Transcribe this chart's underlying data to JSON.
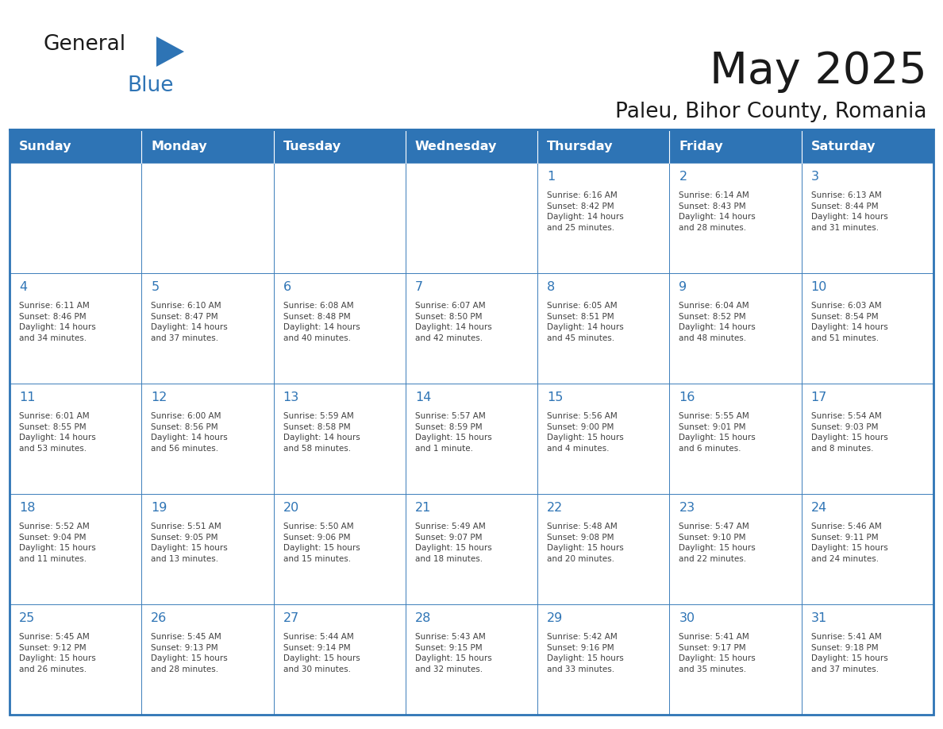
{
  "title": "May 2025",
  "subtitle": "Paleu, Bihor County, Romania",
  "header_bg_color": "#2E74B5",
  "header_text_color": "#FFFFFF",
  "border_color": "#2E74B5",
  "day_number_color": "#2E74B5",
  "cell_text_color": "#404040",
  "days_of_week": [
    "Sunday",
    "Monday",
    "Tuesday",
    "Wednesday",
    "Thursday",
    "Friday",
    "Saturday"
  ],
  "weeks": [
    [
      {
        "day": null,
        "info": null
      },
      {
        "day": null,
        "info": null
      },
      {
        "day": null,
        "info": null
      },
      {
        "day": null,
        "info": null
      },
      {
        "day": 1,
        "info": "Sunrise: 6:16 AM\nSunset: 8:42 PM\nDaylight: 14 hours\nand 25 minutes."
      },
      {
        "day": 2,
        "info": "Sunrise: 6:14 AM\nSunset: 8:43 PM\nDaylight: 14 hours\nand 28 minutes."
      },
      {
        "day": 3,
        "info": "Sunrise: 6:13 AM\nSunset: 8:44 PM\nDaylight: 14 hours\nand 31 minutes."
      }
    ],
    [
      {
        "day": 4,
        "info": "Sunrise: 6:11 AM\nSunset: 8:46 PM\nDaylight: 14 hours\nand 34 minutes."
      },
      {
        "day": 5,
        "info": "Sunrise: 6:10 AM\nSunset: 8:47 PM\nDaylight: 14 hours\nand 37 minutes."
      },
      {
        "day": 6,
        "info": "Sunrise: 6:08 AM\nSunset: 8:48 PM\nDaylight: 14 hours\nand 40 minutes."
      },
      {
        "day": 7,
        "info": "Sunrise: 6:07 AM\nSunset: 8:50 PM\nDaylight: 14 hours\nand 42 minutes."
      },
      {
        "day": 8,
        "info": "Sunrise: 6:05 AM\nSunset: 8:51 PM\nDaylight: 14 hours\nand 45 minutes."
      },
      {
        "day": 9,
        "info": "Sunrise: 6:04 AM\nSunset: 8:52 PM\nDaylight: 14 hours\nand 48 minutes."
      },
      {
        "day": 10,
        "info": "Sunrise: 6:03 AM\nSunset: 8:54 PM\nDaylight: 14 hours\nand 51 minutes."
      }
    ],
    [
      {
        "day": 11,
        "info": "Sunrise: 6:01 AM\nSunset: 8:55 PM\nDaylight: 14 hours\nand 53 minutes."
      },
      {
        "day": 12,
        "info": "Sunrise: 6:00 AM\nSunset: 8:56 PM\nDaylight: 14 hours\nand 56 minutes."
      },
      {
        "day": 13,
        "info": "Sunrise: 5:59 AM\nSunset: 8:58 PM\nDaylight: 14 hours\nand 58 minutes."
      },
      {
        "day": 14,
        "info": "Sunrise: 5:57 AM\nSunset: 8:59 PM\nDaylight: 15 hours\nand 1 minute."
      },
      {
        "day": 15,
        "info": "Sunrise: 5:56 AM\nSunset: 9:00 PM\nDaylight: 15 hours\nand 4 minutes."
      },
      {
        "day": 16,
        "info": "Sunrise: 5:55 AM\nSunset: 9:01 PM\nDaylight: 15 hours\nand 6 minutes."
      },
      {
        "day": 17,
        "info": "Sunrise: 5:54 AM\nSunset: 9:03 PM\nDaylight: 15 hours\nand 8 minutes."
      }
    ],
    [
      {
        "day": 18,
        "info": "Sunrise: 5:52 AM\nSunset: 9:04 PM\nDaylight: 15 hours\nand 11 minutes."
      },
      {
        "day": 19,
        "info": "Sunrise: 5:51 AM\nSunset: 9:05 PM\nDaylight: 15 hours\nand 13 minutes."
      },
      {
        "day": 20,
        "info": "Sunrise: 5:50 AM\nSunset: 9:06 PM\nDaylight: 15 hours\nand 15 minutes."
      },
      {
        "day": 21,
        "info": "Sunrise: 5:49 AM\nSunset: 9:07 PM\nDaylight: 15 hours\nand 18 minutes."
      },
      {
        "day": 22,
        "info": "Sunrise: 5:48 AM\nSunset: 9:08 PM\nDaylight: 15 hours\nand 20 minutes."
      },
      {
        "day": 23,
        "info": "Sunrise: 5:47 AM\nSunset: 9:10 PM\nDaylight: 15 hours\nand 22 minutes."
      },
      {
        "day": 24,
        "info": "Sunrise: 5:46 AM\nSunset: 9:11 PM\nDaylight: 15 hours\nand 24 minutes."
      }
    ],
    [
      {
        "day": 25,
        "info": "Sunrise: 5:45 AM\nSunset: 9:12 PM\nDaylight: 15 hours\nand 26 minutes."
      },
      {
        "day": 26,
        "info": "Sunrise: 5:45 AM\nSunset: 9:13 PM\nDaylight: 15 hours\nand 28 minutes."
      },
      {
        "day": 27,
        "info": "Sunrise: 5:44 AM\nSunset: 9:14 PM\nDaylight: 15 hours\nand 30 minutes."
      },
      {
        "day": 28,
        "info": "Sunrise: 5:43 AM\nSunset: 9:15 PM\nDaylight: 15 hours\nand 32 minutes."
      },
      {
        "day": 29,
        "info": "Sunrise: 5:42 AM\nSunset: 9:16 PM\nDaylight: 15 hours\nand 33 minutes."
      },
      {
        "day": 30,
        "info": "Sunrise: 5:41 AM\nSunset: 9:17 PM\nDaylight: 15 hours\nand 35 minutes."
      },
      {
        "day": 31,
        "info": "Sunrise: 5:41 AM\nSunset: 9:18 PM\nDaylight: 15 hours\nand 37 minutes."
      }
    ]
  ]
}
